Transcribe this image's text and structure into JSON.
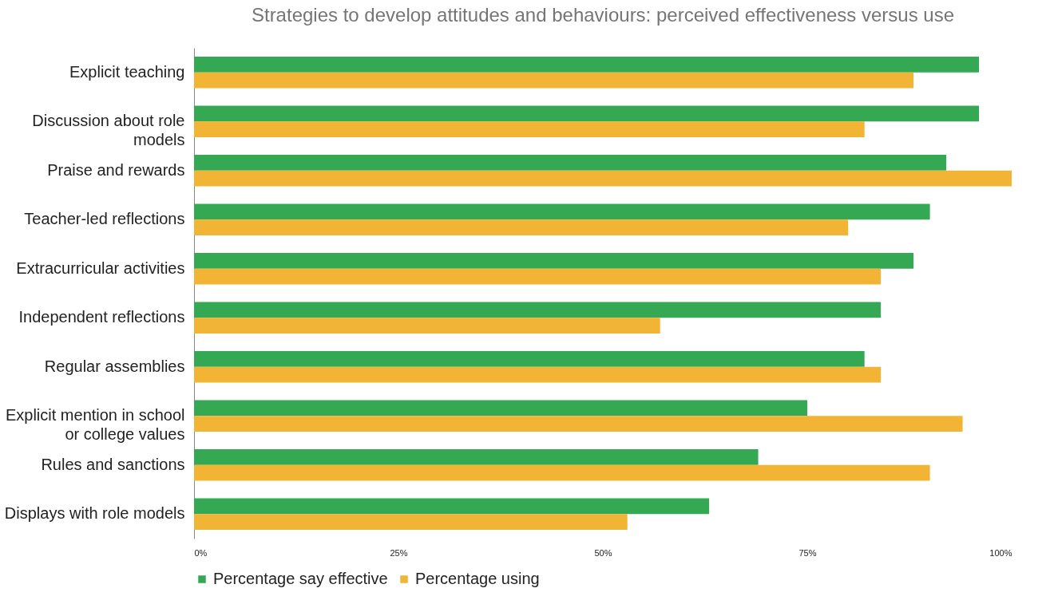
{
  "chart_data": {
    "type": "bar",
    "orientation": "horizontal",
    "title": "Strategies to develop attitudes and behaviours: perceived effectiveness versus use",
    "categories": [
      "Explicit teaching",
      "Discussion about role models",
      "Praise and rewards",
      "Teacher-led reflections",
      "Extracurricular activities",
      "Independent reflections",
      "Regular assemblies",
      "Explicit mention in school or college values",
      "Rules and sanctions",
      "Displays with role models"
    ],
    "series": [
      {
        "name": "Percentage say effective",
        "color": "#34a853",
        "values": [
          96,
          96,
          92,
          90,
          88,
          84,
          82,
          75,
          69,
          63
        ]
      },
      {
        "name": "Percentage using",
        "color": "#f1b434",
        "values": [
          88,
          82,
          100,
          80,
          84,
          57,
          84,
          94,
          90,
          53
        ]
      }
    ],
    "xlim": [
      0,
      100
    ],
    "xticks": [
      {
        "value": 0,
        "label": "0%"
      },
      {
        "value": 25,
        "label": "25%"
      },
      {
        "value": 50,
        "label": "50%"
      },
      {
        "value": 75,
        "label": "75%"
      },
      {
        "value": 100,
        "label": "100%"
      }
    ],
    "grid": false,
    "legend": "bottom"
  }
}
